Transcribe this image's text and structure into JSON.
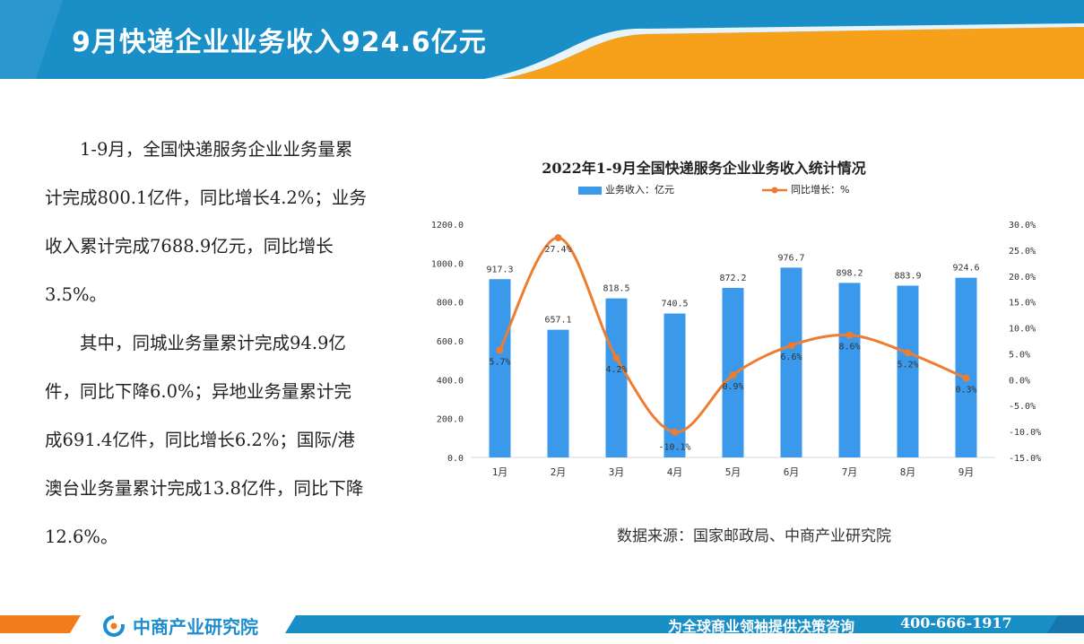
{
  "page": {
    "title": "9月快递企业业务收入924.6亿元"
  },
  "body_text": {
    "paragraph_1": "1-9月，全国快递服务企业业务量累计完成800.1亿件，同比增长4.2%；业务收入累计完成7688.9亿元，同比增长3.5%。",
    "paragraph_2": "其中，同城业务量累计完成94.9亿件，同比下降6.0%；异地业务量累计完成691.4亿件，同比增长6.2%；国际/港澳台业务量累计完成13.8亿件，同比下降12.6%。"
  },
  "source": "数据来源：国家邮政局、中商产业研究院",
  "footer": {
    "logo_text": "中商产业研究院",
    "slogan": "为全球商业领袖提供决策咨询",
    "phone": "400-666-1917"
  },
  "colors": {
    "header_blue": "#1a8ec7",
    "header_orange": "#f7a11a",
    "bar": "#3b99ec",
    "line": "#ed7d31",
    "footer_blue": "#1a8ec7",
    "footer_orange": "#f07d1a"
  },
  "chart_data": {
    "type": "bar",
    "title": "2022年1-9月全国快递服务企业业务收入统计情况",
    "categories": [
      "1月",
      "2月",
      "3月",
      "4月",
      "5月",
      "6月",
      "7月",
      "8月",
      "9月"
    ],
    "series": [
      {
        "name": "业务收入：亿元",
        "type": "bar",
        "axis": "left",
        "values": [
          917.3,
          657.1,
          818.5,
          740.5,
          872.2,
          976.7,
          898.2,
          883.9,
          924.6
        ],
        "labels": [
          "917.3",
          "657.1",
          "818.5",
          "740.5",
          "872.2",
          "976.7",
          "898.2",
          "883.9",
          "924.6"
        ]
      },
      {
        "name": "同比增长：%",
        "type": "line",
        "axis": "right",
        "values": [
          5.7,
          27.4,
          4.2,
          -10.1,
          0.9,
          6.6,
          8.6,
          5.2,
          0.3
        ],
        "labels": [
          "5.7%",
          "27.4%",
          "4.2%",
          "-10.1%",
          "0.9%",
          "6.6%",
          "8.6%",
          "5.2%",
          "0.3%"
        ]
      }
    ],
    "y_left": {
      "min": 0,
      "max": 1200,
      "ticks": [
        0,
        200,
        400,
        600,
        800,
        1000,
        1200
      ],
      "tick_labels": [
        "0.0",
        "200.0",
        "400.0",
        "600.0",
        "800.0",
        "1000.0",
        "1200.0"
      ]
    },
    "y_right": {
      "min": -15,
      "max": 30,
      "ticks": [
        -15,
        -10,
        -5,
        0,
        5,
        10,
        15,
        20,
        25,
        30
      ],
      "tick_labels": [
        "-15.0%",
        "-10.0%",
        "-5.0%",
        "0.0%",
        "5.0%",
        "10.0%",
        "15.0%",
        "20.0%",
        "25.0%",
        "30.0%"
      ]
    },
    "legend_position": "top",
    "grid": false
  }
}
